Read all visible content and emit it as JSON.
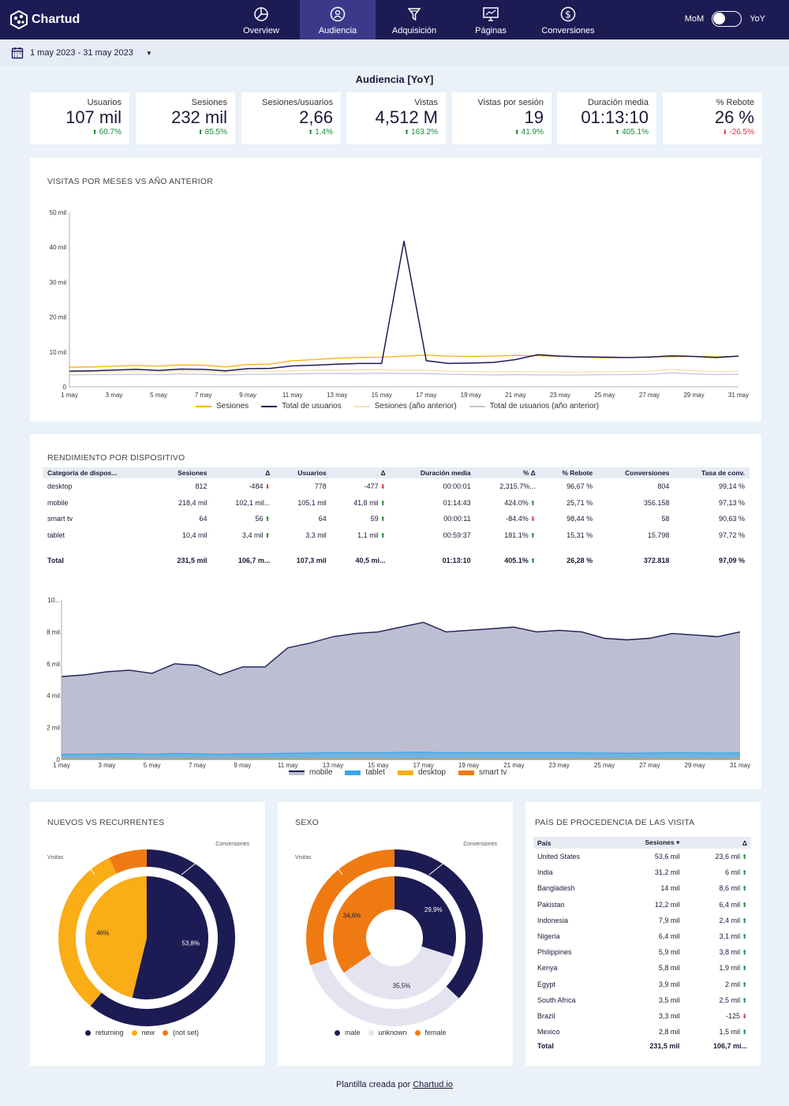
{
  "brand": {
    "name": "Chartud"
  },
  "nav": [
    {
      "label": "Overview",
      "icon": "pie-chart-icon",
      "active": false
    },
    {
      "label": "Audiencia",
      "icon": "users-icon",
      "active": true
    },
    {
      "label": "Adquisición",
      "icon": "funnel-icon",
      "active": false
    },
    {
      "label": "Páginas",
      "icon": "monitor-icon",
      "active": false
    },
    {
      "label": "Conversiones",
      "icon": "dollar-icon",
      "active": false
    }
  ],
  "toggle": {
    "left": "MoM",
    "right": "YoY"
  },
  "date_range": "1 may 2023 - 31 may 2023",
  "page_title": "Audiencia [YoY]",
  "kpis": [
    {
      "label": "Usuarios",
      "value": "107 mil",
      "delta": "60.7%",
      "dir": "up"
    },
    {
      "label": "Sesiones",
      "value": "232 mil",
      "delta": "85.5%",
      "dir": "up"
    },
    {
      "label": "Sesiones/usuarios",
      "value": "2,66",
      "delta": "1.4%",
      "dir": "up"
    },
    {
      "label": "Vistas",
      "value": "4,512 M",
      "delta": "163.2%",
      "dir": "up"
    },
    {
      "label": "Vistas por sesión",
      "value": "19",
      "delta": "41.9%",
      "dir": "up"
    },
    {
      "label": "Duración media",
      "value": "01:13:10",
      "delta": "405.1%",
      "dir": "up"
    },
    {
      "label": "% Rebote",
      "value": "26 %",
      "delta": "-26.5%",
      "dir": "down"
    }
  ],
  "visits_card": {
    "title": "VISITAS POR MESES VS AÑO ANTERIOR"
  },
  "device_card": {
    "title": "RENDIMIENTO POR DISPOSITIVO",
    "headers": [
      "Categoría de dispos...",
      "Sesiones",
      "Δ",
      "Usuarios",
      "Δ",
      "Duración media",
      "% Δ",
      "% Rebote",
      "Conversiones",
      "Tasa de conv."
    ],
    "rows": [
      {
        "cat": "desktop",
        "ses": "812",
        "ses_d": "-484",
        "ses_dir": "down",
        "usr": "778",
        "usr_d": "-477",
        "usr_dir": "down",
        "dur": "00:00:01",
        "dur_d": "2,315.7%...",
        "dur_dir": "",
        "reb": "96,67 %",
        "conv": "804",
        "tasa": "99,14 %"
      },
      {
        "cat": "mobile",
        "ses": "218,4 mil",
        "ses_d": "102,1 mil...",
        "ses_dir": "",
        "usr": "105,1 mil",
        "usr_d": "41,8 mil",
        "usr_dir": "up",
        "dur": "01:14:43",
        "dur_d": "424.0%",
        "dur_dir": "up",
        "reb": "25,71 %",
        "conv": "356.158",
        "tasa": "97,13 %"
      },
      {
        "cat": "smart tv",
        "ses": "64",
        "ses_d": "56",
        "ses_dir": "up",
        "usr": "64",
        "usr_d": "59",
        "usr_dir": "up",
        "dur": "00:00:11",
        "dur_d": "-84.4%",
        "dur_dir": "down",
        "reb": "98,44 %",
        "conv": "58",
        "tasa": "90,63 %"
      },
      {
        "cat": "tablet",
        "ses": "10,4 mil",
        "ses_d": "3,4 mil",
        "ses_dir": "up",
        "usr": "3,3 mil",
        "usr_d": "1,1 mil",
        "usr_dir": "up",
        "dur": "00:59:37",
        "dur_d": "181.1%",
        "dur_dir": "up",
        "reb": "15,31 %",
        "conv": "15.798",
        "tasa": "97,72 %"
      }
    ],
    "total": {
      "cat": "Total",
      "ses": "231,5 mil",
      "ses_d": "106,7 m...",
      "usr": "107,3 mil",
      "usr_d": "40,5 mi...",
      "dur": "01:13:10",
      "dur_d": "405.1%",
      "dur_dir": "up",
      "reb": "26,28 %",
      "conv": "372.818",
      "tasa": "97,09 %"
    }
  },
  "new_vs_returning_card": {
    "title": "NUEVOS VS RECURRENTES",
    "label_inner": "Visitas",
    "label_outer": "Conversiones"
  },
  "sex_card": {
    "title": "SEXO",
    "label_inner": "Visitas",
    "label_outer": "Conversiones"
  },
  "country_card": {
    "title": "PAÍS DE PROCEDENCIA DE LAS VISITA",
    "headers": [
      "País",
      "Sesiones ▾",
      "Δ"
    ],
    "rows": [
      {
        "country": "United States",
        "ses": "53,6 mil",
        "delta": "23,6 mil",
        "dir": "up"
      },
      {
        "country": "India",
        "ses": "31,2 mil",
        "delta": "6 mil",
        "dir": "up"
      },
      {
        "country": "Bangladesh",
        "ses": "14 mil",
        "delta": "8,6 mil",
        "dir": "up"
      },
      {
        "country": "Pakistan",
        "ses": "12,2 mil",
        "delta": "6,4 mil",
        "dir": "up"
      },
      {
        "country": "Indonesia",
        "ses": "7,9 mil",
        "delta": "2,4 mil",
        "dir": "up"
      },
      {
        "country": "Nigeria",
        "ses": "6,4 mil",
        "delta": "3,1 mil",
        "dir": "up"
      },
      {
        "country": "Philippines",
        "ses": "5,9 mil",
        "delta": "3,8 mil",
        "dir": "up"
      },
      {
        "country": "Kenya",
        "ses": "5,8 mil",
        "delta": "1,9 mil",
        "dir": "up"
      },
      {
        "country": "Egypt",
        "ses": "3,9 mil",
        "delta": "2 mil",
        "dir": "up"
      },
      {
        "country": "South Africa",
        "ses": "3,5 mil",
        "delta": "2,5 mil",
        "dir": "up"
      },
      {
        "country": "Brazil",
        "ses": "3,3 mil",
        "delta": "-125",
        "dir": "down"
      },
      {
        "country": "Mexico",
        "ses": "2,8 mil",
        "delta": "1,5 mil",
        "dir": "up"
      }
    ],
    "total": {
      "country": "Total",
      "ses": "231,5 mil",
      "delta": "106,7 mi..."
    }
  },
  "footer": {
    "text": "Plantilla creada por",
    "link": "Chartud.io"
  },
  "colors": {
    "navy": "#1d1b54",
    "orange": "#f07a12",
    "amber": "#f9ad16",
    "lightgray": "#e3e4ef",
    "green": "#1a8a3a",
    "red": "#e0313a"
  },
  "chart_data": [
    {
      "type": "line",
      "x": [
        "1 may",
        "2 may",
        "3 may",
        "4 may",
        "5 may",
        "6 may",
        "7 may",
        "8 may",
        "9 may",
        "10 may",
        "11 may",
        "12 may",
        "13 may",
        "14 may",
        "15 may",
        "16 may",
        "17 may",
        "18 may",
        "19 may",
        "20 may",
        "21 may",
        "22 may",
        "23 may",
        "24 may",
        "25 may",
        "26 may",
        "27 may",
        "28 may",
        "29 may",
        "30 may",
        "31 may"
      ],
      "x_ticks": [
        "1 may",
        "3 may",
        "5 may",
        "7 may",
        "9 may",
        "11 may",
        "13 may",
        "15 may",
        "17 may",
        "19 may",
        "21 may",
        "23 may",
        "25 may",
        "27 may",
        "29 may",
        "31 may"
      ],
      "y_ticks": [
        "0",
        "10 mil",
        "20 mil",
        "30 mil",
        "40 mil",
        "50 mil"
      ],
      "ylim": [
        0,
        50000
      ],
      "legend": "bottom",
      "series": [
        {
          "name": "Sesiones",
          "color": "#f9ad16",
          "values": [
            5600,
            5700,
            5900,
            6100,
            5900,
            6300,
            6200,
            5700,
            6400,
            6500,
            7500,
            7800,
            8200,
            8400,
            8500,
            8800,
            9100,
            8800,
            8700,
            8800,
            9000,
            8900,
            8700,
            8500,
            8300,
            8400,
            8600,
            8600,
            8700,
            8600,
            8800
          ]
        },
        {
          "name": "Total de usuarios",
          "color": "#1d1b54",
          "values": [
            4500,
            4600,
            4800,
            5000,
            4700,
            5100,
            5000,
            4600,
            5200,
            5300,
            6000,
            6200,
            6500,
            6700,
            6700,
            41800,
            7500,
            6700,
            6800,
            7000,
            7800,
            9200,
            8800,
            8600,
            8500,
            8400,
            8500,
            8900,
            8700,
            8400,
            8800
          ]
        },
        {
          "name": "Sesiones (año anterior)",
          "color": "#f8dfa8",
          "values": [
            4200,
            4300,
            4300,
            4400,
            4300,
            4600,
            4400,
            4200,
            4500,
            4500,
            4600,
            4800,
            4800,
            4900,
            4900,
            4800,
            4700,
            4500,
            4400,
            4300,
            4400,
            4300,
            4200,
            4200,
            4300,
            4400,
            4500,
            5000,
            4600,
            4400,
            4500
          ]
        },
        {
          "name": "Total de usuarios (año anterior)",
          "color": "#c3c5d6",
          "values": [
            3400,
            3500,
            3500,
            3600,
            3500,
            3700,
            3600,
            3400,
            3600,
            3600,
            3700,
            3800,
            3800,
            3800,
            3900,
            3800,
            3800,
            3600,
            3500,
            3400,
            3500,
            3400,
            3400,
            3400,
            3500,
            3500,
            3600,
            4000,
            3700,
            3500,
            3600
          ]
        }
      ]
    },
    {
      "type": "area",
      "x": [
        "1 may",
        "2 may",
        "3 may",
        "4 may",
        "5 may",
        "6 may",
        "7 may",
        "8 may",
        "9 may",
        "10 may",
        "11 may",
        "12 may",
        "13 may",
        "14 may",
        "15 may",
        "16 may",
        "17 may",
        "18 may",
        "19 may",
        "20 may",
        "21 may",
        "22 may",
        "23 may",
        "24 may",
        "25 may",
        "26 may",
        "27 may",
        "28 may",
        "29 may",
        "30 may",
        "31 may"
      ],
      "x_ticks": [
        "1 may",
        "3 may",
        "5 may",
        "7 may",
        "9 may",
        "11 may",
        "13 may",
        "15 may",
        "17 may",
        "19 may",
        "21 may",
        "23 may",
        "25 may",
        "27 may",
        "29 may",
        "31 may"
      ],
      "y_ticks": [
        "0",
        "2 mil",
        "4 mil",
        "6 mil",
        "8 mil",
        "10..."
      ],
      "ylim": [
        0,
        10000
      ],
      "legend": "bottom",
      "series": [
        {
          "name": "mobile",
          "color": "#bdbed2",
          "values": [
            5200,
            5300,
            5500,
            5600,
            5400,
            6000,
            5900,
            5300,
            5800,
            5800,
            7000,
            7300,
            7700,
            7900,
            8000,
            8300,
            8600,
            8000,
            8100,
            8200,
            8300,
            8000,
            8100,
            8000,
            7600,
            7500,
            7600,
            7900,
            7800,
            7700,
            8000
          ]
        },
        {
          "name": "tablet",
          "color": "#35a7e8",
          "values": [
            320,
            330,
            350,
            360,
            330,
            370,
            360,
            320,
            360,
            360,
            390,
            400,
            420,
            430,
            430,
            440,
            450,
            420,
            420,
            430,
            430,
            420,
            420,
            410,
            400,
            390,
            400,
            420,
            410,
            400,
            410
          ]
        },
        {
          "name": "desktop",
          "color": "#f9ad16",
          "values": [
            30,
            25,
            30,
            28,
            25,
            30,
            28,
            25,
            28,
            30,
            26,
            28,
            25,
            30,
            28,
            25,
            26,
            25,
            28,
            25,
            26,
            25,
            27,
            25,
            26,
            25,
            26,
            28,
            25,
            25,
            26
          ]
        },
        {
          "name": "smart tv",
          "color": "#f07a12",
          "values": [
            2,
            2,
            2,
            3,
            2,
            2,
            2,
            2,
            2,
            2,
            2,
            2,
            2,
            2,
            2,
            2,
            2,
            2,
            2,
            2,
            2,
            2,
            2,
            2,
            2,
            2,
            2,
            2,
            2,
            2,
            2
          ]
        }
      ]
    },
    {
      "type": "pie",
      "title": "NUEVOS VS RECURRENTES",
      "categories": [
        "returning",
        "new",
        "(not set)"
      ],
      "colors": [
        "#1d1b54",
        "#f9ad16",
        "#f07a12"
      ],
      "rings": [
        {
          "name": "Visitas",
          "values": [
            53.8,
            46.0,
            0.2
          ],
          "labels": [
            "53,8%",
            "46%",
            ""
          ]
        },
        {
          "name": "Conversiones",
          "values": [
            61.0,
            32.0,
            7.0
          ]
        }
      ]
    },
    {
      "type": "pie",
      "title": "SEXO",
      "categories": [
        "male",
        "unknown",
        "female"
      ],
      "colors": [
        "#1d1b54",
        "#e3e4ef",
        "#f07a12"
      ],
      "rings": [
        {
          "name": "Visitas",
          "values": [
            29.9,
            35.5,
            34.6
          ],
          "labels": [
            "29,9%",
            "35,5%",
            "34,6%"
          ]
        },
        {
          "name": "Conversiones",
          "values": [
            37.0,
            33.0,
            30.0
          ]
        }
      ]
    }
  ]
}
